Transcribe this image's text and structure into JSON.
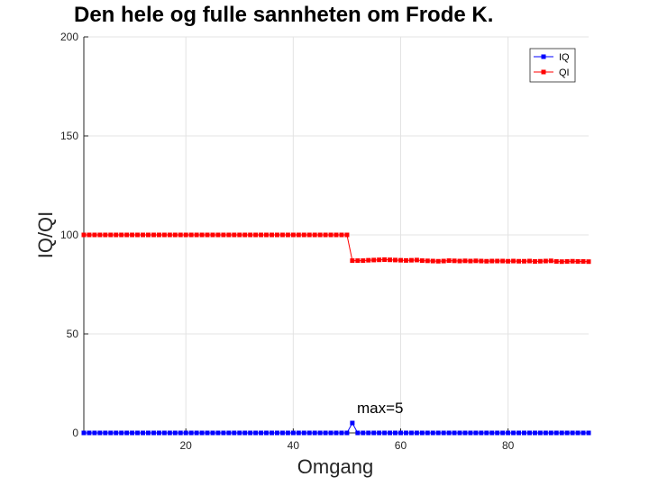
{
  "chart_data": {
    "type": "line",
    "title": "Den hele og fulle sannheten om Frode K.",
    "xlabel": "Omgang",
    "ylabel": "IQ/QI",
    "xlim": [
      1,
      95
    ],
    "ylim": [
      0,
      200
    ],
    "xticks": [
      20,
      40,
      60,
      80
    ],
    "yticks": [
      0,
      50,
      100,
      150,
      200
    ],
    "grid": true,
    "legend_position": "top-right",
    "annotation": {
      "text": "max=5",
      "x": 51,
      "y": 5
    },
    "series": [
      {
        "name": "IQ",
        "color": "#0000ff",
        "marker": "square",
        "values": [
          0,
          0,
          0,
          0,
          0,
          0,
          0,
          0,
          0,
          0,
          0,
          0,
          0,
          0,
          0,
          0,
          0,
          0,
          0,
          0,
          0,
          0,
          0,
          0,
          0,
          0,
          0,
          0,
          0,
          0,
          0,
          0,
          0,
          0,
          0,
          0,
          0,
          0,
          0,
          0,
          0,
          0,
          0,
          0,
          0,
          0,
          0,
          0,
          0,
          0,
          5,
          0,
          0,
          0,
          0,
          0,
          0,
          0,
          0,
          0,
          0,
          0,
          0,
          0,
          0,
          0,
          0,
          0,
          0,
          0,
          0,
          0,
          0,
          0,
          0,
          0,
          0,
          0,
          0,
          0,
          0,
          0,
          0,
          0,
          0,
          0,
          0,
          0,
          0,
          0,
          0,
          0,
          0,
          0,
          0
        ]
      },
      {
        "name": "QI",
        "color": "#ff0000",
        "marker": "square",
        "values": [
          100,
          100,
          100,
          100,
          100,
          100,
          100,
          100,
          100,
          100,
          100,
          100,
          100,
          100,
          100,
          100,
          100,
          100,
          100,
          100,
          100,
          100,
          100,
          100,
          100,
          100,
          100,
          100,
          100,
          100,
          100,
          100,
          100,
          100,
          100,
          100,
          100,
          100,
          100,
          100,
          100,
          100,
          100,
          100,
          100,
          100,
          100,
          100,
          100,
          100,
          87,
          87,
          87,
          87.2,
          87.3,
          87.4,
          87.5,
          87.4,
          87.3,
          87.2,
          87.1,
          87.2,
          87.3,
          87,
          86.9,
          86.8,
          86.7,
          86.8,
          87,
          86.9,
          86.8,
          86.9,
          86.8,
          86.9,
          86.8,
          86.7,
          86.8,
          86.8,
          86.8,
          86.7,
          86.8,
          86.7,
          86.7,
          86.8,
          86.6,
          86.7,
          86.8,
          86.9,
          86.6,
          86.5,
          86.6,
          86.7,
          86.6,
          86.6,
          86.5
        ]
      }
    ]
  }
}
